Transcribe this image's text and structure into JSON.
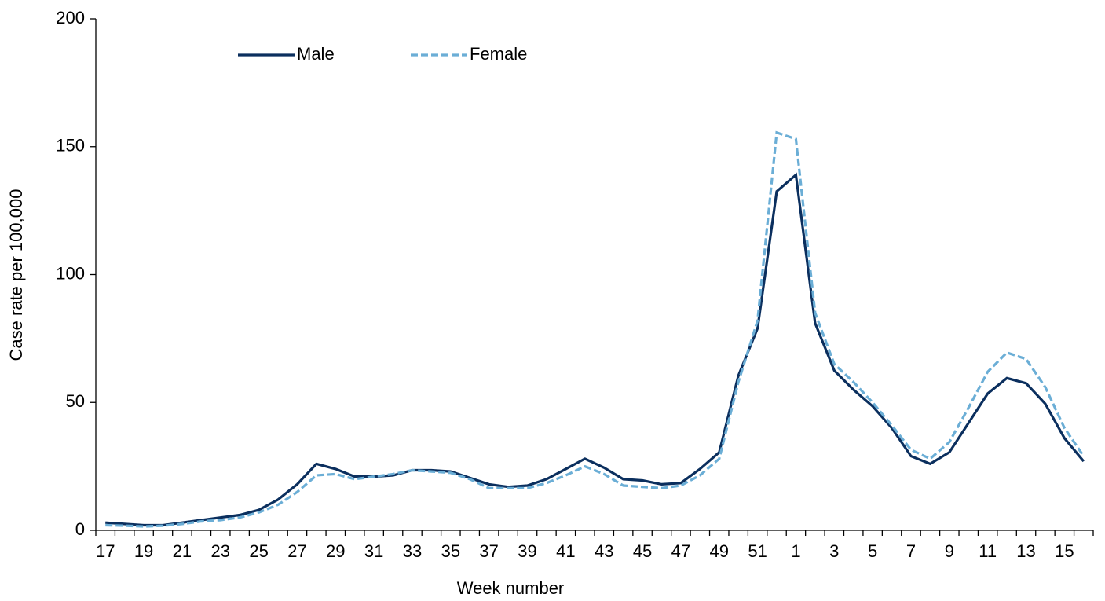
{
  "chart_data": {
    "type": "line",
    "xlabel": "Week number",
    "ylabel": "Case rate per 100,000",
    "categories": [
      "17",
      null,
      "19",
      null,
      "21",
      null,
      "23",
      null,
      "25",
      null,
      "27",
      null,
      "29",
      null,
      "31",
      null,
      "33",
      null,
      "35",
      null,
      "37",
      null,
      "39",
      null,
      "41",
      null,
      "43",
      null,
      "45",
      null,
      "47",
      null,
      "49",
      null,
      "51",
      null,
      "1",
      null,
      "3",
      null,
      "5",
      null,
      "7",
      null,
      "9",
      null,
      "11",
      null,
      "13",
      null,
      "15",
      null
    ],
    "series": [
      {
        "name": "Male",
        "color": "#0b2f5e",
        "dash": false,
        "values": [
          3,
          2.5,
          2,
          2,
          3,
          4,
          5,
          6,
          8,
          12,
          18,
          26,
          24,
          21,
          21,
          21.5,
          23.5,
          23.5,
          23,
          20.5,
          18,
          17,
          17.5,
          20,
          24,
          28,
          24.5,
          20,
          19.5,
          18,
          18.5,
          24,
          30.5,
          60.5,
          79,
          132.5,
          139,
          81,
          62.5,
          55,
          48.5,
          40,
          29,
          26,
          30.5,
          42,
          53.5,
          59.5,
          57.5,
          49.5,
          36,
          27
        ]
      },
      {
        "name": "Female",
        "color": "#6baed6",
        "dash": true,
        "values": [
          2,
          1.8,
          1.5,
          1.8,
          2.5,
          3.5,
          4,
          5,
          7,
          10,
          15,
          21.5,
          22,
          20,
          21,
          22,
          23.5,
          23,
          22.5,
          20,
          16.5,
          16.5,
          16.5,
          18.5,
          21.5,
          25,
          22,
          17.5,
          17,
          16.5,
          17.5,
          21.5,
          28,
          58,
          82,
          155.5,
          153,
          85,
          65,
          58,
          50,
          41,
          31.5,
          28,
          34.5,
          48,
          62,
          69.5,
          67,
          56,
          40,
          29
        ]
      }
    ],
    "ylim": [
      0,
      200
    ],
    "yticks": [
      0,
      50,
      100,
      150,
      200
    ],
    "grid": false
  }
}
